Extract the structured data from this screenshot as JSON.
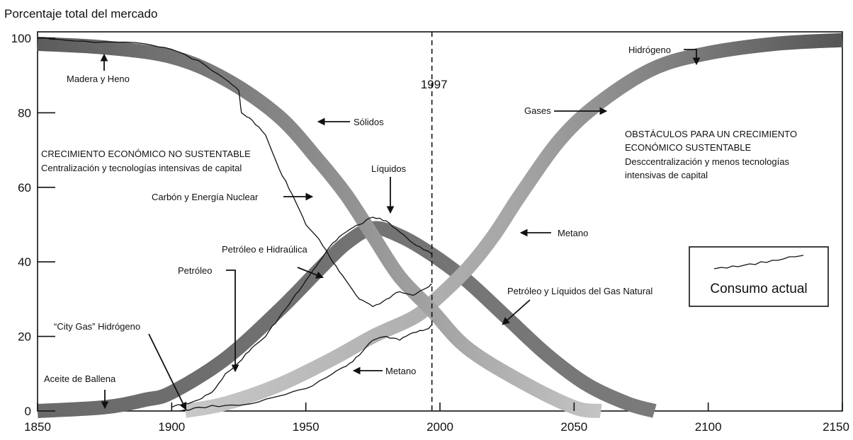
{
  "chart_data": {
    "type": "line",
    "ylabel": "Porcentaje total del mercado",
    "xlabel": "",
    "xlim": [
      1850,
      2150
    ],
    "ylim": [
      0,
      100
    ],
    "x_ticks": [
      1850,
      1900,
      1950,
      2000,
      2050,
      2100,
      2150
    ],
    "y_ticks": [
      0,
      20,
      40,
      60,
      80,
      100
    ],
    "marker_year": 1997,
    "marker_label": "1997",
    "series_bands": [
      {
        "key": "solids",
        "color": "#6e6e6e",
        "points": [
          [
            1850,
            98.5
          ],
          [
            1875,
            97.5
          ],
          [
            1900,
            95
          ],
          [
            1920,
            89
          ],
          [
            1940,
            79
          ],
          [
            1955,
            67
          ],
          [
            1965,
            58
          ],
          [
            1975,
            47
          ],
          [
            1985,
            36
          ],
          [
            1997,
            27
          ],
          [
            2010,
            17
          ],
          [
            2030,
            8
          ],
          [
            2050,
            1
          ],
          [
            2060,
            0
          ]
        ]
      },
      {
        "key": "liquids",
        "color": "#6a6a6a",
        "points": [
          [
            1850,
            0
          ],
          [
            1875,
            1
          ],
          [
            1890,
            3
          ],
          [
            1900,
            5
          ],
          [
            1920,
            14
          ],
          [
            1940,
            27
          ],
          [
            1955,
            38
          ],
          [
            1965,
            45
          ],
          [
            1975,
            49
          ],
          [
            1985,
            47
          ],
          [
            1997,
            42
          ],
          [
            2010,
            35
          ],
          [
            2025,
            25
          ],
          [
            2040,
            15
          ],
          [
            2055,
            7
          ],
          [
            2070,
            2
          ],
          [
            2080,
            0
          ]
        ]
      },
      {
        "key": "gases",
        "color": "#9a9a9a",
        "points": [
          [
            1905,
            0
          ],
          [
            1920,
            2
          ],
          [
            1940,
            7
          ],
          [
            1960,
            14
          ],
          [
            1975,
            20
          ],
          [
            1990,
            25
          ],
          [
            1997,
            29
          ],
          [
            2010,
            38
          ],
          [
            2020,
            47
          ],
          [
            2030,
            58
          ],
          [
            2045,
            73
          ],
          [
            2060,
            83
          ],
          [
            2080,
            92
          ],
          [
            2100,
            96
          ],
          [
            2125,
            98.5
          ],
          [
            2150,
            99.5
          ]
        ]
      }
    ],
    "current_consumption": [
      {
        "key": "wood",
        "points": [
          [
            1850,
            100
          ],
          [
            1860,
            99.5
          ],
          [
            1875,
            99
          ],
          [
            1890,
            98.5
          ],
          [
            1900,
            97
          ],
          [
            1910,
            94
          ],
          [
            1920,
            89
          ],
          [
            1925,
            86
          ],
          [
            1926,
            80
          ],
          [
            1930,
            78
          ],
          [
            1935,
            74
          ],
          [
            1940,
            65
          ],
          [
            1945,
            58
          ],
          [
            1950,
            50
          ],
          [
            1955,
            46
          ],
          [
            1960,
            40
          ],
          [
            1965,
            35
          ],
          [
            1970,
            30
          ],
          [
            1975,
            28
          ],
          [
            1980,
            30
          ],
          [
            1985,
            32
          ],
          [
            1990,
            31
          ],
          [
            1995,
            33
          ],
          [
            1997,
            34
          ]
        ]
      },
      {
        "key": "oil",
        "points": [
          [
            1900,
            1
          ],
          [
            1905,
            2
          ],
          [
            1910,
            3
          ],
          [
            1915,
            5
          ],
          [
            1920,
            10
          ],
          [
            1925,
            13
          ],
          [
            1930,
            17
          ],
          [
            1935,
            20
          ],
          [
            1940,
            25
          ],
          [
            1945,
            30
          ],
          [
            1950,
            35
          ],
          [
            1955,
            40
          ],
          [
            1960,
            45
          ],
          [
            1965,
            48
          ],
          [
            1970,
            50
          ],
          [
            1975,
            52
          ],
          [
            1980,
            51
          ],
          [
            1985,
            48
          ],
          [
            1990,
            45
          ],
          [
            1995,
            43
          ],
          [
            1997,
            42
          ]
        ]
      },
      {
        "key": "gas",
        "points": [
          [
            1903,
            0
          ],
          [
            1910,
            1
          ],
          [
            1920,
            1.5
          ],
          [
            1930,
            2
          ],
          [
            1940,
            4
          ],
          [
            1950,
            6
          ],
          [
            1960,
            10
          ],
          [
            1965,
            12
          ],
          [
            1970,
            15
          ],
          [
            1975,
            19
          ],
          [
            1980,
            20
          ],
          [
            1985,
            19
          ],
          [
            1990,
            21
          ],
          [
            1995,
            22
          ],
          [
            1997,
            23
          ]
        ]
      }
    ],
    "annotations": [
      {
        "text": "Madera y Heno"
      },
      {
        "text": "Sólidos"
      },
      {
        "text": "CRECIMIENTO ECONÓMICO NO SUSTENTABLE"
      },
      {
        "text": "Centralización y tecnologías intensivas de capital"
      },
      {
        "text": "Carbón y Energía Nuclear"
      },
      {
        "text": "Líquidos"
      },
      {
        "text": "Petróleo e Hidraúlica"
      },
      {
        "text": "Petróleo"
      },
      {
        "text": "“City Gas” Hidrógeno"
      },
      {
        "text": "Aceite de Ballena"
      },
      {
        "text": "Metano"
      },
      {
        "text": "Hidrógeno"
      },
      {
        "text": "Gases"
      },
      {
        "text": "OBSTÁCULOS PARA UN CRECIMIENTO"
      },
      {
        "text": "ECONÓMICO SUSTENTABLE"
      },
      {
        "text": "Desccentralización y menos tecnologías"
      },
      {
        "text": "intensivas de capital"
      },
      {
        "text": "Metano"
      },
      {
        "text": "Petróleo y Líquidos del Gas Natural"
      }
    ],
    "legend": {
      "label": "Consumo actual",
      "placement": "right"
    }
  }
}
